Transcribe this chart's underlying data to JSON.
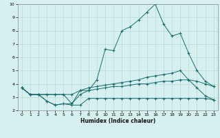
{
  "xlabel": "Humidex (Indice chaleur)",
  "bg_color": "#d6f0f0",
  "grid_color": "#b8d8d8",
  "line_color": "#1a6b6b",
  "xlim": [
    -0.5,
    23.5
  ],
  "ylim": [
    2,
    10
  ],
  "xticks": [
    0,
    1,
    2,
    3,
    4,
    5,
    6,
    7,
    8,
    9,
    10,
    11,
    12,
    13,
    14,
    15,
    16,
    17,
    18,
    19,
    20,
    21,
    22,
    23
  ],
  "yticks": [
    2,
    3,
    4,
    5,
    6,
    7,
    8,
    9,
    10
  ],
  "series": [
    {
      "x": [
        0,
        1,
        2,
        3,
        4,
        5,
        6,
        7,
        8,
        9,
        10,
        11,
        12,
        13,
        14,
        15,
        16,
        17,
        18,
        19,
        20,
        21,
        22,
        23
      ],
      "y": [
        3.7,
        3.2,
        3.2,
        3.2,
        3.2,
        3.2,
        2.5,
        3.2,
        3.5,
        4.3,
        6.6,
        6.5,
        8.0,
        8.3,
        8.8,
        9.4,
        10.0,
        8.5,
        7.6,
        7.8,
        6.3,
        5.0,
        4.2,
        3.8
      ]
    },
    {
      "x": [
        0,
        1,
        2,
        3,
        4,
        5,
        6,
        7,
        8,
        9,
        10,
        11,
        12,
        13,
        14,
        15,
        16,
        17,
        18,
        19,
        20,
        21,
        22,
        23
      ],
      "y": [
        3.7,
        3.2,
        3.2,
        2.7,
        2.4,
        2.5,
        2.5,
        3.5,
        3.7,
        3.8,
        3.9,
        4.0,
        4.1,
        4.2,
        4.3,
        4.5,
        4.6,
        4.7,
        4.8,
        5.0,
        4.3,
        3.7,
        3.1,
        2.8
      ]
    },
    {
      "x": [
        0,
        1,
        2,
        3,
        4,
        5,
        6,
        7,
        8,
        9,
        10,
        11,
        12,
        13,
        14,
        15,
        16,
        17,
        18,
        19,
        20,
        21,
        22,
        23
      ],
      "y": [
        3.7,
        3.2,
        3.2,
        3.2,
        3.2,
        3.2,
        3.2,
        3.5,
        3.5,
        3.6,
        3.7,
        3.8,
        3.8,
        3.9,
        4.0,
        4.0,
        4.1,
        4.2,
        4.2,
        4.3,
        4.3,
        4.2,
        4.0,
        3.8
      ]
    },
    {
      "x": [
        0,
        1,
        2,
        3,
        4,
        5,
        6,
        7,
        8,
        9,
        10,
        11,
        12,
        13,
        14,
        15,
        16,
        17,
        18,
        19,
        20,
        21,
        22,
        23
      ],
      "y": [
        3.7,
        3.2,
        3.2,
        2.7,
        2.4,
        2.5,
        2.4,
        2.4,
        2.9,
        2.9,
        2.9,
        2.9,
        2.9,
        2.9,
        2.9,
        2.9,
        2.9,
        2.9,
        2.9,
        2.9,
        2.9,
        2.9,
        2.9,
        2.8
      ]
    }
  ]
}
